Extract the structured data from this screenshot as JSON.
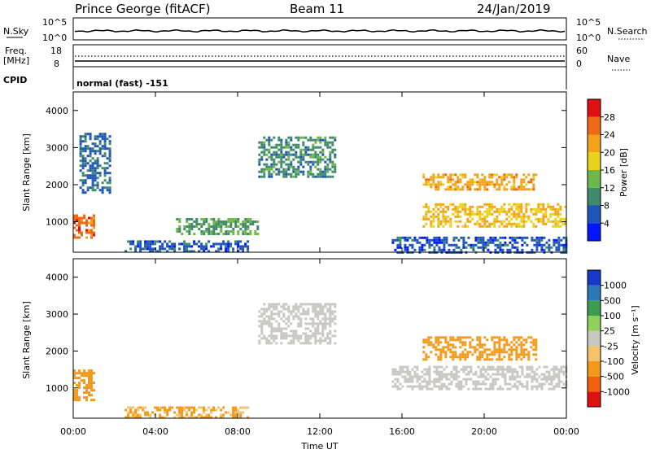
{
  "header": {
    "station": "Prince George (fitACF)",
    "beam": "Beam 11",
    "date": "24/Jan/2019"
  },
  "noise_panel": {
    "left_label": "N.Sky",
    "right_label": "N.Search",
    "tick_top": "10^5",
    "tick_bottom": "10^0"
  },
  "freq_panel": {
    "left_label_line1": "Freq.",
    "left_label_line2": "[MHz]",
    "right_label": "Nave",
    "left_tick_top": "18",
    "left_tick_bottom": "8",
    "right_tick_top": "60",
    "right_tick_bottom": "0"
  },
  "cpid": {
    "label": "CPID",
    "mode": "normal (fast) -151"
  },
  "power_panel": {
    "ylabel": "Slant Range [km]",
    "colorbar_label": "Power [dB]",
    "y_ticks": [
      "1000",
      "2000",
      "3000",
      "4000"
    ],
    "colorbar_ticks": [
      "4",
      "8",
      "12",
      "16",
      "20",
      "24",
      "28"
    ],
    "colorbar_colors": [
      "#0016ff",
      "#1e55b8",
      "#3f8a6a",
      "#6eb84a",
      "#e8d21a",
      "#f2a31a",
      "#ef6a16",
      "#e01010"
    ]
  },
  "velocity_panel": {
    "ylabel": "Slant Range [km]",
    "colorbar_label": "Velocity [m s⁻¹]",
    "y_ticks": [
      "1000",
      "2000",
      "3000",
      "4000"
    ],
    "colorbar_ticks": [
      "-1000",
      "-500",
      "-100",
      "-25",
      "25",
      "100",
      "500",
      "1000"
    ],
    "colorbar_colors": [
      "#e01010",
      "#f2600e",
      "#f39a1a",
      "#f5c36a",
      "#c8c8c0",
      "#8fd05a",
      "#3c9d50",
      "#2a78b6",
      "#1838c8"
    ]
  },
  "x_axis": {
    "label": "Time UT",
    "ticks": [
      "00:00",
      "04:00",
      "08:00",
      "12:00",
      "16:00",
      "20:00",
      "00:00"
    ]
  },
  "chart_data": {
    "type": "heatmap",
    "x_range_hours": [
      0,
      24
    ],
    "y_range_km": [
      180,
      4500
    ],
    "power_regions": [
      {
        "t0": 0.0,
        "t1": 1.0,
        "r0": 600,
        "r1": 1200,
        "value_db": 26
      },
      {
        "t0": 0.3,
        "t1": 1.8,
        "r0": 1800,
        "r1": 3400,
        "value_db": 8
      },
      {
        "t0": 2.5,
        "t1": 8.5,
        "r0": 200,
        "r1": 500,
        "value_db": 6
      },
      {
        "t0": 5.0,
        "t1": 9.0,
        "r0": 700,
        "r1": 1100,
        "value_db": 12
      },
      {
        "t0": 9.0,
        "t1": 12.8,
        "r0": 2200,
        "r1": 3300,
        "value_db": 10
      },
      {
        "t0": 15.5,
        "t1": 24.0,
        "r0": 200,
        "r1": 600,
        "value_db": 6
      },
      {
        "t0": 17.0,
        "t1": 24.0,
        "r0": 900,
        "r1": 1500,
        "value_db": 20
      },
      {
        "t0": 17.0,
        "t1": 22.5,
        "r0": 1900,
        "r1": 2300,
        "value_db": 22
      }
    ],
    "velocity_regions": [
      {
        "t0": 0.0,
        "t1": 1.0,
        "r0": 700,
        "r1": 1500,
        "value_ms": -300
      },
      {
        "t0": 2.5,
        "t1": 8.5,
        "r0": 200,
        "r1": 500,
        "value_ms": -100
      },
      {
        "t0": 9.0,
        "t1": 12.8,
        "r0": 2200,
        "r1": 3300,
        "value_ms": 20
      },
      {
        "t0": 15.5,
        "t1": 24.0,
        "r0": 1000,
        "r1": 1600,
        "value_ms": 15
      },
      {
        "t0": 17.0,
        "t1": 22.5,
        "r0": 1800,
        "r1": 2400,
        "value_ms": -400
      }
    ]
  }
}
